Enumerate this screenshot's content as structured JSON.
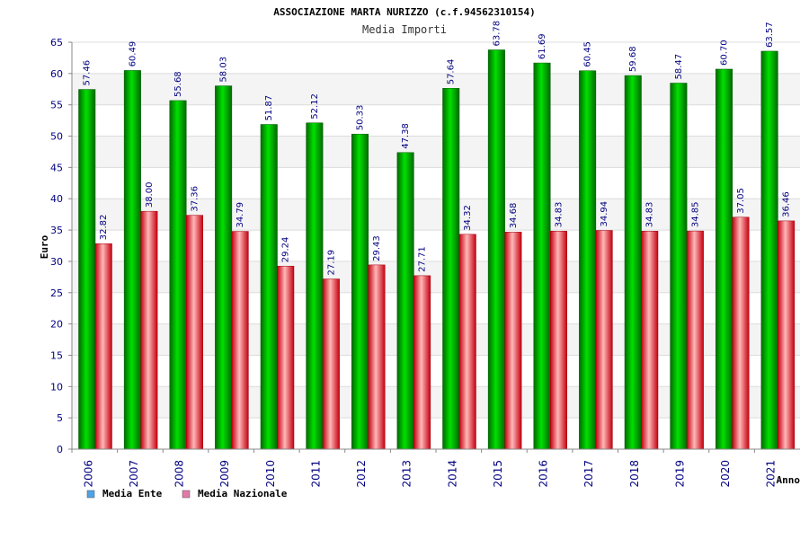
{
  "chart_data": {
    "type": "bar",
    "title": "ASSOCIAZIONE MARTA NURIZZO (c.f.94562310154)",
    "subtitle": "Media Importi",
    "xlabel": "Anno",
    "ylabel": "Euro",
    "ylim": [
      0,
      65
    ],
    "yticks": [
      "0",
      "5",
      "10",
      "15",
      "20",
      "25",
      "30",
      "35",
      "40",
      "45",
      "50",
      "55",
      "60",
      "65"
    ],
    "grid": true,
    "legend_placement": "bottom-left",
    "categories": [
      "2006",
      "2007",
      "2008",
      "2009",
      "2010",
      "2011",
      "2012",
      "2013",
      "2014",
      "2015",
      "2016",
      "2017",
      "2018",
      "2019",
      "2020",
      "2021"
    ],
    "series": [
      {
        "name": "Media Ente",
        "color": "#00b400",
        "legend_color": "#4da3e8",
        "values": [
          57.46,
          60.49,
          55.68,
          58.03,
          51.87,
          52.12,
          50.33,
          47.38,
          57.64,
          63.78,
          61.69,
          60.45,
          59.68,
          58.47,
          60.7,
          63.57
        ],
        "labels": [
          "57.46",
          "60.49",
          "55.68",
          "58.03",
          "51.87",
          "52.12",
          "50.33",
          "47.38",
          "57.64",
          "63.78",
          "61.69",
          "60.45",
          "59.68",
          "58.47",
          "60.70",
          "63.57"
        ]
      },
      {
        "name": "Media Nazionale",
        "color": "#e8262c",
        "legend_color": "#e27aa8",
        "values": [
          32.82,
          38.0,
          37.36,
          34.79,
          29.24,
          27.19,
          29.43,
          27.71,
          34.32,
          34.68,
          34.83,
          34.94,
          34.83,
          34.85,
          37.05,
          36.46
        ],
        "labels": [
          "32.82",
          "38.00",
          "37.36",
          "34.79",
          "29.24",
          "27.19",
          "29.43",
          "27.71",
          "34.32",
          "34.68",
          "34.83",
          "34.94",
          "34.83",
          "34.85",
          "37.05",
          "36.46"
        ]
      }
    ]
  }
}
